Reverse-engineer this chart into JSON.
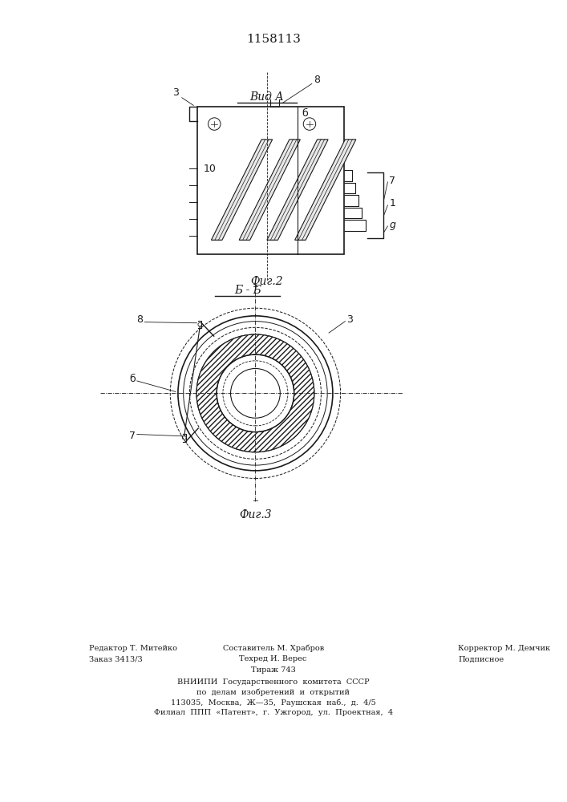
{
  "patent_number": "1158113",
  "bg_color": "#ffffff",
  "line_color": "#1a1a1a",
  "fig2_label": "Вид А",
  "fig2_caption": "Фиг.2",
  "fig3_label": "Б - Б",
  "fig3_caption": "Фиг.3",
  "footer_line1_left": "Редактор Т. Митейко",
  "footer_line1_center": "Составитель М. Храбров",
  "footer_line1_right": "Корректор М. Демчик",
  "footer_line2_left": "Заказ 3413/3",
  "footer_line2_center": "Техред И. Верес",
  "footer_line2_right": "Подписное",
  "footer_line3_center": "Тираж 743",
  "footer_block": "ВНИИПИ  Государственного  комитета  СССР\nпо  делам  изобретений  и  открытий\n113035,  Москва,  Ж—35,  Раушская  наб.,  д.  4/5\nФилиал  ППП  «Патент»,  г.  Ужгород,  ул.  Проектная,  4"
}
